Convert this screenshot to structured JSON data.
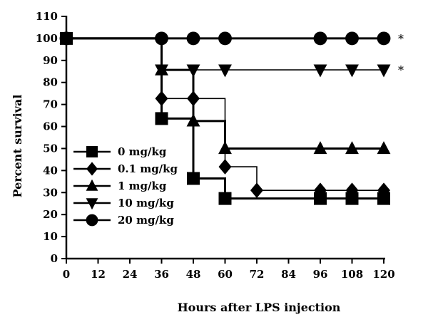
{
  "chart_data": {
    "type": "line",
    "step": true,
    "xlabel": "Hours after LPS injection",
    "ylabel": "Percent survival",
    "xlim": [
      0,
      120
    ],
    "ylim": [
      0,
      110
    ],
    "xticks": [
      0,
      12,
      24,
      36,
      48,
      60,
      72,
      84,
      96,
      108,
      120
    ],
    "yticks": [
      0,
      10,
      20,
      30,
      40,
      50,
      60,
      70,
      80,
      90,
      100,
      110
    ],
    "grid": false,
    "legend_position": "lower-left",
    "series": [
      {
        "name": "0 mg/kg",
        "marker": "square",
        "line_width": "thick",
        "points": [
          [
            0,
            100
          ],
          [
            36,
            63.6
          ],
          [
            48,
            36.4
          ],
          [
            60,
            27.3
          ],
          [
            96,
            27.3
          ],
          [
            108,
            27.3
          ],
          [
            120,
            27.3
          ]
        ]
      },
      {
        "name": "0.1 mg/kg",
        "marker": "diamond",
        "line_width": "thin",
        "points": [
          [
            0,
            100
          ],
          [
            36,
            72.7
          ],
          [
            48,
            72.7
          ],
          [
            60,
            41.7
          ],
          [
            72,
            31
          ],
          [
            96,
            31
          ],
          [
            108,
            31
          ],
          [
            120,
            31
          ]
        ]
      },
      {
        "name": "1 mg/kg",
        "marker": "triangle-up",
        "line_width": "thick",
        "points": [
          [
            0,
            100
          ],
          [
            36,
            85.7
          ],
          [
            48,
            62.5
          ],
          [
            60,
            50
          ],
          [
            96,
            50
          ],
          [
            108,
            50
          ],
          [
            120,
            50
          ]
        ]
      },
      {
        "name": "10 mg/kg",
        "marker": "triangle-down",
        "line_width": "thin",
        "points": [
          [
            0,
            100
          ],
          [
            36,
            85.7
          ],
          [
            48,
            85.7
          ],
          [
            60,
            85.7
          ],
          [
            96,
            85.7
          ],
          [
            108,
            85.7
          ],
          [
            120,
            85.7
          ]
        ]
      },
      {
        "name": "20 mg/kg",
        "marker": "circle",
        "line_width": "thick",
        "points": [
          [
            0,
            100
          ],
          [
            36,
            100
          ],
          [
            48,
            100
          ],
          [
            60,
            100
          ],
          [
            96,
            100
          ],
          [
            108,
            100
          ],
          [
            120,
            100
          ]
        ]
      }
    ],
    "annotations": [
      {
        "text": "*",
        "x": 120,
        "y": 100
      },
      {
        "text": "*",
        "x": 120,
        "y": 85.7
      }
    ]
  }
}
